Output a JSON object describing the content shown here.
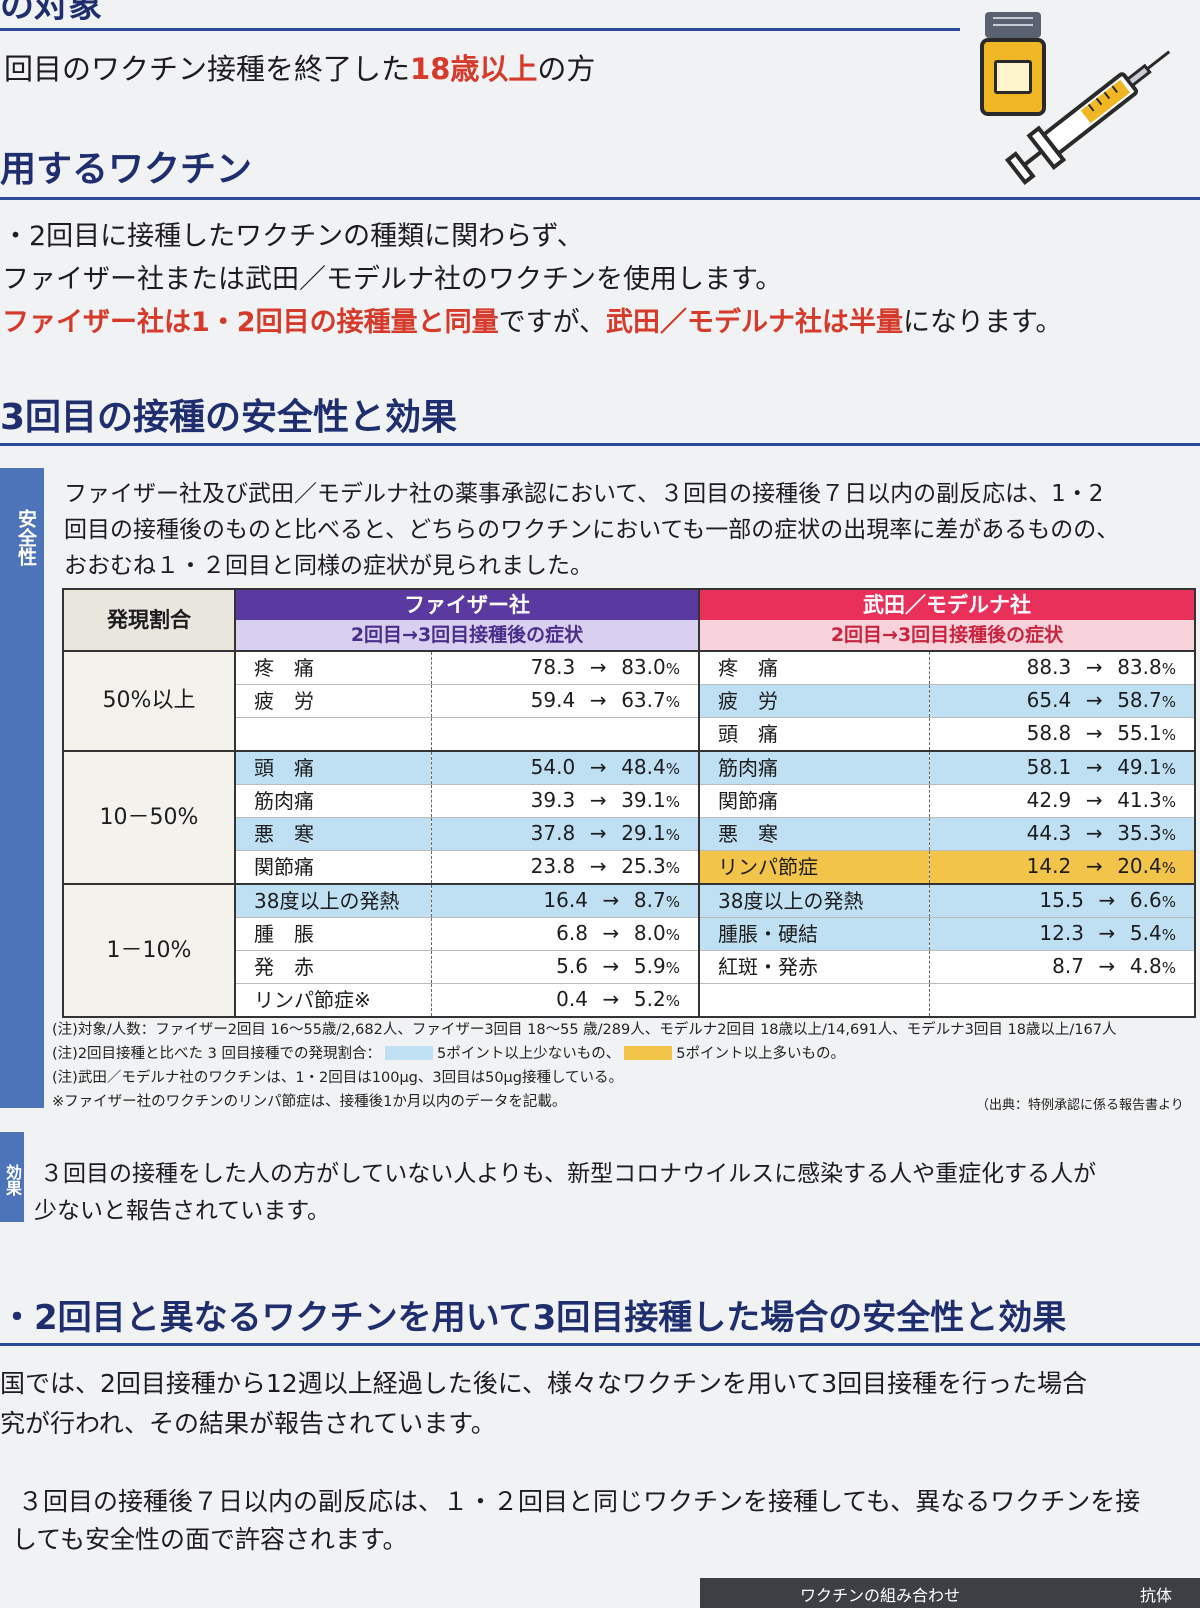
{
  "top": {
    "partial_heading": "の対象",
    "line1_pre": "回目のワクチン接種を終了した",
    "line1_red": "18歳以上",
    "line1_post": "の方"
  },
  "vaccine_section": {
    "title": "用するワクチン",
    "line1": "・2回目に接種したワクチンの種類に関わらず、",
    "line2": "ファイザー社または武田／モデルナ社のワクチンを使用します。",
    "line3_red1": "ファイザー社は1・2回目の接種量と同量",
    "line3_mid": "ですが、",
    "line3_red2": "武田／モデルナ社は半量",
    "line3_post": "になります。"
  },
  "safety_section": {
    "title": "3回目の接種の安全性と効果",
    "tab_label": "安全性",
    "para1": "ファイザー社及び武田／モデルナ社の薬事承認において、３回目の接種後７日以内の副反応は、1・2",
    "para2": "回目の接種後のものと比べると、どちらのワクチンにおいても一部の症状の出現率に差があるものの、",
    "para3": "おおむね１・２回目と同様の症状が見られました。"
  },
  "table": {
    "category_header": "発現割合",
    "pfizer_name": "ファイザー社",
    "pfizer_sub": "2回目→3回目接種後の症状",
    "moderna_name": "武田／モデルナ社",
    "moderna_sub": "2回目→3回目接種後の症状",
    "arrow": "→",
    "unit": "%",
    "groups": [
      {
        "label": "50%以上",
        "rows": [
          {
            "p_sym": "疼　痛",
            "p_from": "78.3",
            "p_to": "83.0",
            "p_hl": "",
            "m_sym": "疼　痛",
            "m_from": "88.3",
            "m_to": "83.8",
            "m_hl": ""
          },
          {
            "p_sym": "疲　労",
            "p_from": "59.4",
            "p_to": "63.7",
            "p_hl": "",
            "m_sym": "疲　労",
            "m_from": "65.4",
            "m_to": "58.7",
            "m_hl": "blue"
          },
          {
            "p_sym": "",
            "p_from": "",
            "p_to": "",
            "p_hl": "",
            "m_sym": "頭　痛",
            "m_from": "58.8",
            "m_to": "55.1",
            "m_hl": ""
          }
        ]
      },
      {
        "label": "10－50%",
        "rows": [
          {
            "p_sym": "頭　痛",
            "p_from": "54.0",
            "p_to": "48.4",
            "p_hl": "blue",
            "m_sym": "筋肉痛",
            "m_from": "58.1",
            "m_to": "49.1",
            "m_hl": "blue"
          },
          {
            "p_sym": "筋肉痛",
            "p_from": "39.3",
            "p_to": "39.1",
            "p_hl": "",
            "m_sym": "関節痛",
            "m_from": "42.9",
            "m_to": "41.3",
            "m_hl": ""
          },
          {
            "p_sym": "悪　寒",
            "p_from": "37.8",
            "p_to": "29.1",
            "p_hl": "blue",
            "m_sym": "悪　寒",
            "m_from": "44.3",
            "m_to": "35.3",
            "m_hl": "blue"
          },
          {
            "p_sym": "関節痛",
            "p_from": "23.8",
            "p_to": "25.3",
            "p_hl": "",
            "m_sym": "リンパ節症",
            "m_from": "14.2",
            "m_to": "20.4",
            "m_hl": "yellow"
          }
        ]
      },
      {
        "label": "1－10%",
        "rows": [
          {
            "p_sym": "38度以上の発熱",
            "p_from": "16.4",
            "p_to": "8.7",
            "p_hl": "blue",
            "m_sym": "38度以上の発熱",
            "m_from": "15.5",
            "m_to": "6.6",
            "m_hl": "blue"
          },
          {
            "p_sym": "腫　脹",
            "p_from": "6.8",
            "p_to": "8.0",
            "p_hl": "",
            "m_sym": "腫脹・硬結",
            "m_from": "12.3",
            "m_to": "5.4",
            "m_hl": "blue"
          },
          {
            "p_sym": "発　赤",
            "p_from": "5.6",
            "p_to": "5.9",
            "p_hl": "",
            "m_sym": "紅斑・発赤",
            "m_from": "8.7",
            "m_to": "4.8",
            "m_hl": ""
          },
          {
            "p_sym": "リンパ節症※",
            "p_from": "0.4",
            "p_to": "5.2",
            "p_hl": "",
            "m_sym": "",
            "m_from": "",
            "m_to": "",
            "m_hl": ""
          }
        ]
      }
    ]
  },
  "notes": {
    "n1": "(注)対象/人数：ファイザー2回目 16〜55歳/2,682人、ファイザー3回目 18〜55 歳/289人、モデルナ2回目 18歳以上/14,691人、モデルナ3回目 18歳以上/167人",
    "n2_pre": "(注)2回目接種と比べた 3 回目接種での発現割合：",
    "n2_blue": "5ポイント以上少ないもの、",
    "n2_yellow": "5ポイント以上多いもの。",
    "n3": "(注)武田／モデルナ社のワクチンは、1・2回目は100μg、3回目は50μg接種している。",
    "n4": "※ファイザー社のワクチンのリンパ節症は、接種後1か月以内のデータを記載。",
    "source": "（出典：特例承認に係る報告書より"
  },
  "efficacy": {
    "tab_label": "効果",
    "line1": "３回目の接種をした人の方がしていない人よりも、新型コロナウイルスに感染する人や重症化する人が",
    "line2": "少ないと報告されています。"
  },
  "hetero_section": {
    "title": "・2回目と異なるワクチンを用いて3回目接種した場合の安全性と効果",
    "line1": "国では、2回目接種から12週以上経過した後に、様々なワクチンを用いて3回目接種を行った場合",
    "line2": "究が行われ、その結果が報告されています。",
    "line3": "３回目の接種後７日以内の副反応は、１・２回目と同じワクチンを接種しても、異なるワクチンを接",
    "line4": "しても安全性の面で許容されます。",
    "bottom_label": "ワクチンの組み合わせ",
    "bottom_right": "抗体"
  },
  "colors": {
    "heading": "#1f2e6e",
    "red": "#d53a2a",
    "pfizer": "#5a3aa0",
    "moderna": "#e8305a",
    "blue_highlight": "#bfe0f2",
    "yellow_highlight": "#f2c44a"
  },
  "icons": [
    "medicine-bottle-icon",
    "syringe-icon"
  ]
}
